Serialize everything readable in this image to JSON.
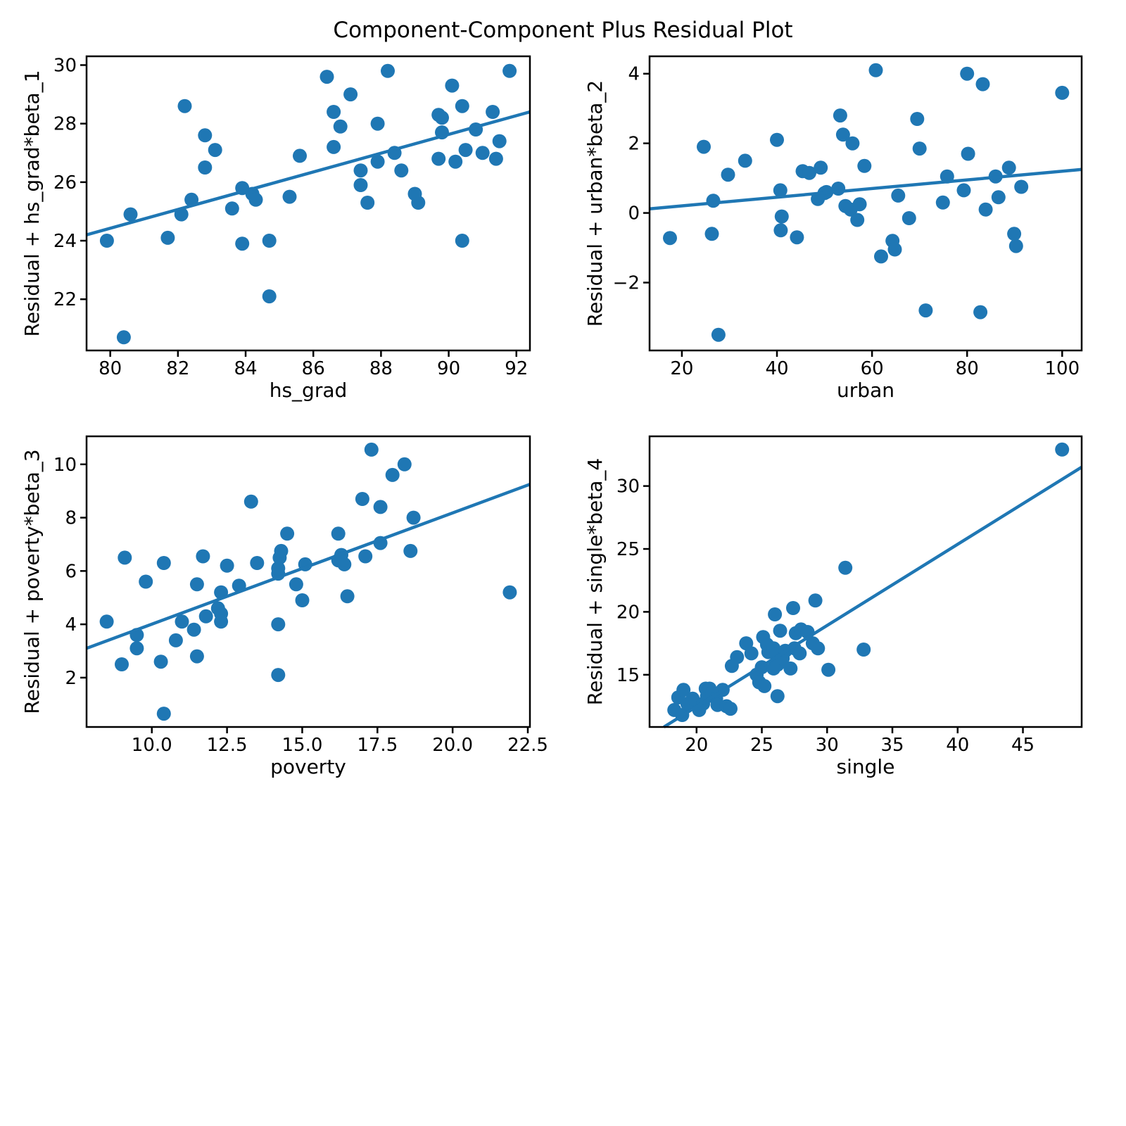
{
  "title": "Component-Component Plus Residual Plot",
  "colors": {
    "accent": "#1f77b4",
    "axis": "#000000",
    "background": "#ffffff"
  },
  "chart_data": [
    {
      "type": "scatter",
      "title": "",
      "xlabel": "hs_grad",
      "ylabel": "Residual + hs_grad*beta_1",
      "xlim": [
        79.3,
        92.4
      ],
      "ylim": [
        20.25,
        30.3
      ],
      "xticks": [
        80,
        82,
        84,
        86,
        88,
        90,
        92
      ],
      "xtick_labels": [
        "80",
        "82",
        "84",
        "86",
        "88",
        "90",
        "92"
      ],
      "yticks": [
        22,
        24,
        26,
        28,
        30
      ],
      "ytick_labels": [
        "22",
        "24",
        "26",
        "28",
        "30"
      ],
      "grid": false,
      "legend_position": "none",
      "fit_line": {
        "x": [
          79.3,
          92.4
        ],
        "y": [
          24.2,
          28.4
        ]
      },
      "points": [
        [
          79.9,
          24.0
        ],
        [
          80.4,
          20.7
        ],
        [
          80.6,
          24.9
        ],
        [
          81.7,
          24.1
        ],
        [
          82.1,
          24.9
        ],
        [
          82.2,
          28.6
        ],
        [
          82.4,
          25.4
        ],
        [
          82.8,
          27.6
        ],
        [
          82.8,
          26.5
        ],
        [
          83.1,
          27.1
        ],
        [
          83.6,
          25.1
        ],
        [
          83.9,
          25.8
        ],
        [
          83.9,
          23.9
        ],
        [
          84.2,
          25.6
        ],
        [
          84.3,
          25.4
        ],
        [
          84.7,
          24.0
        ],
        [
          84.7,
          22.1
        ],
        [
          85.3,
          25.5
        ],
        [
          85.6,
          26.9
        ],
        [
          86.4,
          29.6
        ],
        [
          86.6,
          28.4
        ],
        [
          86.6,
          27.2
        ],
        [
          86.8,
          27.9
        ],
        [
          87.1,
          29.0
        ],
        [
          87.4,
          26.4
        ],
        [
          87.4,
          25.9
        ],
        [
          87.6,
          25.3
        ],
        [
          87.9,
          28.0
        ],
        [
          87.9,
          26.7
        ],
        [
          88.2,
          29.8
        ],
        [
          88.4,
          27.0
        ],
        [
          88.6,
          26.4
        ],
        [
          89.0,
          25.6
        ],
        [
          89.1,
          25.3
        ],
        [
          89.7,
          28.3
        ],
        [
          89.7,
          26.8
        ],
        [
          89.8,
          28.2
        ],
        [
          89.8,
          27.7
        ],
        [
          90.1,
          29.3
        ],
        [
          90.2,
          26.7
        ],
        [
          90.4,
          28.6
        ],
        [
          90.4,
          24.0
        ],
        [
          90.5,
          27.1
        ],
        [
          90.8,
          27.8
        ],
        [
          91.0,
          27.0
        ],
        [
          91.3,
          28.4
        ],
        [
          91.4,
          26.8
        ],
        [
          91.5,
          27.4
        ],
        [
          91.8,
          29.8
        ]
      ]
    },
    {
      "type": "scatter",
      "title": "",
      "xlabel": "urban",
      "ylabel": "Residual + urban*beta_2",
      "xlim": [
        13.2,
        104.1
      ],
      "ylim": [
        -3.95,
        4.5
      ],
      "xticks": [
        20,
        40,
        60,
        80,
        100
      ],
      "xtick_labels": [
        "20",
        "40",
        "60",
        "80",
        "100"
      ],
      "yticks": [
        -2,
        0,
        2,
        4
      ],
      "ytick_labels": [
        "−2",
        "0",
        "2",
        "4"
      ],
      "grid": false,
      "legend_position": "none",
      "fit_line": {
        "x": [
          13.2,
          104.1
        ],
        "y": [
          0.12,
          1.25
        ]
      },
      "points": [
        [
          17.5,
          -0.72
        ],
        [
          24.6,
          1.9
        ],
        [
          26.3,
          -0.6
        ],
        [
          26.6,
          0.35
        ],
        [
          27.7,
          -3.5
        ],
        [
          29.7,
          1.1
        ],
        [
          33.3,
          1.5
        ],
        [
          40.0,
          2.1
        ],
        [
          40.7,
          0.65
        ],
        [
          41.0,
          -0.1
        ],
        [
          40.8,
          -0.5
        ],
        [
          44.2,
          -0.7
        ],
        [
          45.4,
          1.2
        ],
        [
          46.8,
          1.15
        ],
        [
          48.6,
          0.4
        ],
        [
          49.2,
          1.3
        ],
        [
          50.0,
          0.57
        ],
        [
          50.4,
          0.6
        ],
        [
          52.9,
          0.7
        ],
        [
          53.3,
          2.8
        ],
        [
          53.9,
          2.25
        ],
        [
          54.4,
          0.2
        ],
        [
          55.5,
          0.1
        ],
        [
          55.9,
          2.0
        ],
        [
          56.9,
          -0.2
        ],
        [
          57.4,
          0.25
        ],
        [
          58.4,
          1.35
        ],
        [
          60.8,
          4.1
        ],
        [
          61.9,
          -1.25
        ],
        [
          64.3,
          -0.8
        ],
        [
          64.8,
          -1.05
        ],
        [
          65.5,
          0.5
        ],
        [
          67.8,
          -0.15
        ],
        [
          69.5,
          2.7
        ],
        [
          70.0,
          1.85
        ],
        [
          71.3,
          -2.8
        ],
        [
          74.9,
          0.3
        ],
        [
          75.8,
          1.05
        ],
        [
          79.3,
          0.65
        ],
        [
          80.0,
          4.0
        ],
        [
          80.2,
          1.7
        ],
        [
          82.8,
          -2.85
        ],
        [
          83.3,
          3.7
        ],
        [
          83.9,
          0.1
        ],
        [
          86.0,
          1.05
        ],
        [
          86.6,
          0.45
        ],
        [
          88.8,
          1.3
        ],
        [
          89.9,
          -0.6
        ],
        [
          90.3,
          -0.95
        ],
        [
          91.4,
          0.75
        ],
        [
          100.0,
          3.45
        ]
      ]
    },
    {
      "type": "scatter",
      "title": "",
      "xlabel": "poverty",
      "ylabel": "Residual + poverty*beta_3",
      "xlim": [
        7.83,
        22.57
      ],
      "ylim": [
        0.15,
        11.05
      ],
      "xticks": [
        10.0,
        12.5,
        15.0,
        17.5,
        20.0,
        22.5
      ],
      "xtick_labels": [
        "10.0",
        "12.5",
        "15.0",
        "17.5",
        "20.0",
        "22.5"
      ],
      "yticks": [
        2,
        4,
        6,
        8,
        10
      ],
      "ytick_labels": [
        "2",
        "4",
        "6",
        "8",
        "10"
      ],
      "grid": false,
      "legend_position": "none",
      "fit_line": {
        "x": [
          7.83,
          22.57
        ],
        "y": [
          3.1,
          9.25
        ]
      },
      "points": [
        [
          8.5,
          4.1
        ],
        [
          9.0,
          2.5
        ],
        [
          9.1,
          6.5
        ],
        [
          9.5,
          3.6
        ],
        [
          9.5,
          3.1
        ],
        [
          9.8,
          5.6
        ],
        [
          10.3,
          2.6
        ],
        [
          10.4,
          0.65
        ],
        [
          10.4,
          6.3
        ],
        [
          10.8,
          3.4
        ],
        [
          11.0,
          4.1
        ],
        [
          11.4,
          3.8
        ],
        [
          11.5,
          2.8
        ],
        [
          11.5,
          5.5
        ],
        [
          11.7,
          6.55
        ],
        [
          11.8,
          4.3
        ],
        [
          12.2,
          4.6
        ],
        [
          12.3,
          4.4
        ],
        [
          12.3,
          4.1
        ],
        [
          12.3,
          5.2
        ],
        [
          12.5,
          6.2
        ],
        [
          12.9,
          5.45
        ],
        [
          13.3,
          8.6
        ],
        [
          13.5,
          6.3
        ],
        [
          14.2,
          5.9
        ],
        [
          14.2,
          6.1
        ],
        [
          14.25,
          6.5
        ],
        [
          14.3,
          6.75
        ],
        [
          14.5,
          7.4
        ],
        [
          14.2,
          4.0
        ],
        [
          14.2,
          2.1
        ],
        [
          14.8,
          5.5
        ],
        [
          15.0,
          4.9
        ],
        [
          15.1,
          6.25
        ],
        [
          16.2,
          7.4
        ],
        [
          16.2,
          6.4
        ],
        [
          16.3,
          6.6
        ],
        [
          16.4,
          6.25
        ],
        [
          16.5,
          5.05
        ],
        [
          17.0,
          8.7
        ],
        [
          17.1,
          6.55
        ],
        [
          17.3,
          10.55
        ],
        [
          17.6,
          8.4
        ],
        [
          17.6,
          7.05
        ],
        [
          18.0,
          9.6
        ],
        [
          18.4,
          10.0
        ],
        [
          18.6,
          6.75
        ],
        [
          18.7,
          8.0
        ],
        [
          21.9,
          5.2
        ]
      ]
    },
    {
      "type": "scatter",
      "title": "",
      "xlabel": "single",
      "ylabel": "Residual + single*beta_4",
      "xlim": [
        16.4,
        49.5
      ],
      "ylim": [
        10.85,
        33.95
      ],
      "xticks": [
        20,
        25,
        30,
        35,
        40,
        45
      ],
      "xtick_labels": [
        "20",
        "25",
        "30",
        "35",
        "40",
        "45"
      ],
      "yticks": [
        15,
        20,
        25,
        30
      ],
      "ytick_labels": [
        "15",
        "20",
        "25",
        "30"
      ],
      "grid": false,
      "legend_position": "none",
      "fit_line": {
        "x": [
          17.5,
          49.5
        ],
        "y": [
          10.85,
          31.5
        ]
      },
      "points": [
        [
          18.3,
          12.2
        ],
        [
          18.6,
          13.2
        ],
        [
          18.9,
          11.8
        ],
        [
          19.0,
          13.8
        ],
        [
          19.3,
          12.7
        ],
        [
          19.7,
          13.1
        ],
        [
          20.2,
          12.2
        ],
        [
          20.5,
          12.7
        ],
        [
          20.7,
          13.9
        ],
        [
          20.8,
          13.3
        ],
        [
          21.0,
          13.9
        ],
        [
          21.2,
          13.5
        ],
        [
          21.5,
          13.1
        ],
        [
          21.6,
          12.6
        ],
        [
          22.0,
          13.8
        ],
        [
          22.3,
          12.5
        ],
        [
          22.6,
          12.3
        ],
        [
          22.7,
          15.7
        ],
        [
          23.1,
          16.4
        ],
        [
          23.8,
          17.5
        ],
        [
          24.2,
          16.7
        ],
        [
          24.6,
          15.0
        ],
        [
          24.8,
          14.4
        ],
        [
          25.0,
          15.6
        ],
        [
          25.1,
          18.0
        ],
        [
          25.2,
          14.1
        ],
        [
          25.4,
          17.4
        ],
        [
          25.5,
          16.8
        ],
        [
          25.9,
          17.1
        ],
        [
          25.9,
          15.5
        ],
        [
          26.0,
          19.8
        ],
        [
          26.1,
          16.6
        ],
        [
          26.2,
          15.8
        ],
        [
          26.2,
          13.3
        ],
        [
          26.4,
          18.5
        ],
        [
          26.6,
          16.3
        ],
        [
          26.8,
          16.9
        ],
        [
          27.2,
          15.5
        ],
        [
          27.4,
          20.3
        ],
        [
          27.5,
          17.1
        ],
        [
          27.6,
          18.3
        ],
        [
          27.9,
          16.7
        ],
        [
          28.0,
          18.6
        ],
        [
          28.5,
          18.4
        ],
        [
          28.9,
          17.5
        ],
        [
          29.1,
          20.9
        ],
        [
          29.3,
          17.1
        ],
        [
          30.1,
          15.4
        ],
        [
          31.4,
          23.5
        ],
        [
          32.8,
          17.0
        ],
        [
          48.0,
          32.9
        ]
      ]
    }
  ]
}
